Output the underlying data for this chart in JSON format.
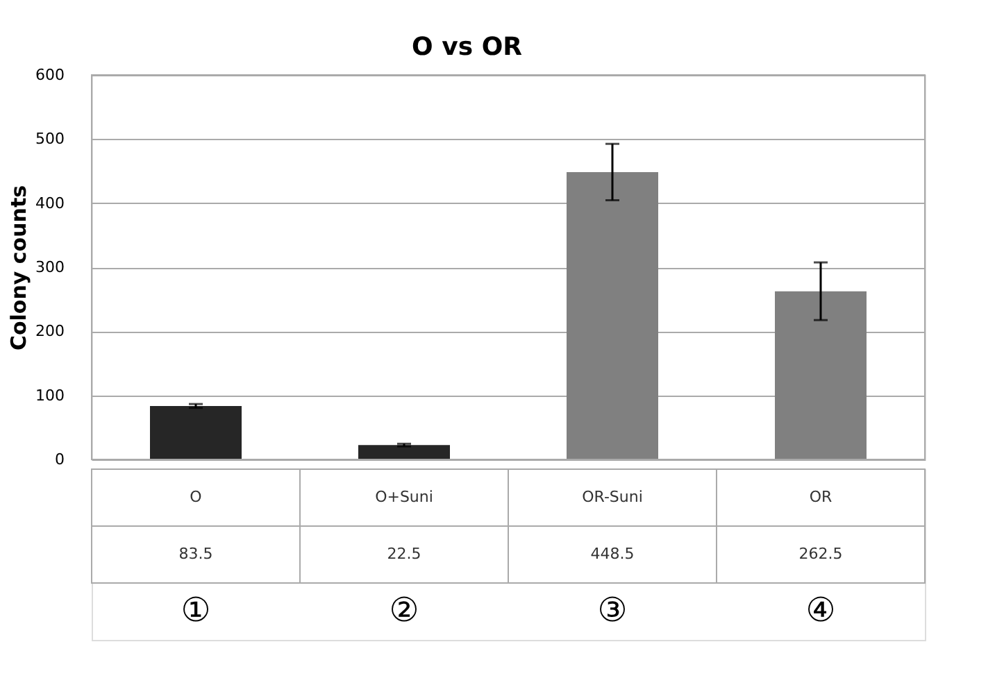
{
  "chart_data": {
    "type": "bar",
    "title": "O vs OR",
    "ylabel": "Colony counts",
    "categories": [
      "O",
      "O+Suni",
      "OR-Suni",
      "OR"
    ],
    "values": [
      83.5,
      22.5,
      448.5,
      262.5
    ],
    "errors": [
      3,
      2,
      44,
      45
    ],
    "colors": [
      "#262626",
      "#262626",
      "#808080",
      "#808080"
    ],
    "ylim": [
      0,
      600
    ],
    "yticks": [
      0,
      100,
      200,
      300,
      400,
      500,
      600
    ],
    "grid": "y",
    "data_labels": true,
    "annotations": [
      "①",
      "②",
      "③",
      "④"
    ]
  }
}
